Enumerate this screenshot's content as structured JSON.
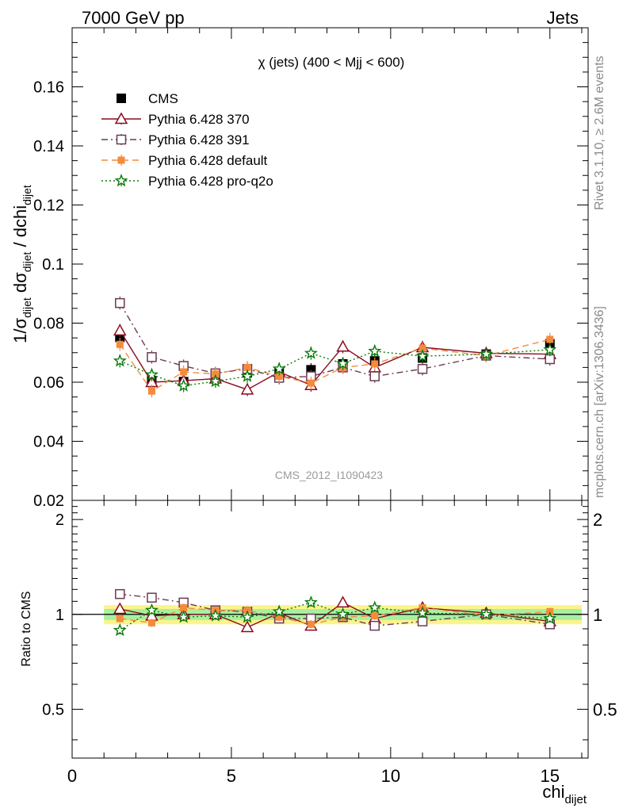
{
  "header": {
    "left": "7000 GeV pp",
    "right": "Jets"
  },
  "side_labels": {
    "rivet": "Rivet 3.1.10, ≥ 2.6M events",
    "mcplots": "mcplots.cern.ch [arXiv:1306.3436]"
  },
  "chart_data": [
    {
      "type": "line",
      "title": "χ (jets) (400 < Mjj <  600)",
      "ylabel": "1/σ_dijet dσ_dijet / dchi_dijet",
      "xlabel": "",
      "xlim": [
        0,
        16.2
      ],
      "ylim": [
        0.02,
        0.18
      ],
      "yticks": [
        0.02,
        0.04,
        0.06,
        0.08,
        0.1,
        0.12,
        0.14,
        0.16
      ],
      "ytick_labels": [
        "0.02",
        "0.04",
        "0.06",
        "0.08",
        "0.1",
        "0.12",
        "0.14",
        "0.16"
      ],
      "watermark": "CMS_2012_I1090423",
      "legend_position": "top-left",
      "x": [
        1.5,
        2.5,
        3.5,
        4.5,
        5.5,
        6.5,
        7.5,
        8.5,
        9.5,
        11,
        13,
        15
      ],
      "series": [
        {
          "name": "CMS",
          "color": "#000000",
          "marker": "filled-square",
          "line": "none",
          "values": [
            0.0752,
            0.0605,
            0.0602,
            0.0612,
            0.0632,
            0.0632,
            0.0642,
            0.0662,
            0.0672,
            0.0682,
            0.0695,
            0.073
          ]
        },
        {
          "name": "Pythia 6.428 370",
          "color": "#8b0a1e",
          "marker": "open-triangle",
          "line": "solid",
          "values": [
            0.0775,
            0.06,
            0.0605,
            0.0612,
            0.0575,
            0.0635,
            0.059,
            0.072,
            0.065,
            0.0718,
            0.0698,
            0.0695
          ]
        },
        {
          "name": "Pythia 6.428 391",
          "color": "#6b3a52",
          "marker": "open-square",
          "line": "dash-dot",
          "values": [
            0.0868,
            0.0685,
            0.0655,
            0.063,
            0.0645,
            0.0615,
            0.062,
            0.065,
            0.062,
            0.0645,
            0.069,
            0.0678
          ]
        },
        {
          "name": "Pythia 6.428 default",
          "color": "#f58a3c",
          "marker": "filled-square-small",
          "line": "dashed",
          "values": [
            0.0728,
            0.057,
            0.0635,
            0.0628,
            0.065,
            0.062,
            0.0597,
            0.065,
            0.0662,
            0.0715,
            0.069,
            0.0745
          ]
        },
        {
          "name": "Pythia 6.428 pro-q2o",
          "color": "#0a7a0a",
          "marker": "open-star",
          "line": "dotted",
          "values": [
            0.0672,
            0.0625,
            0.0588,
            0.0603,
            0.062,
            0.0645,
            0.0698,
            0.0663,
            0.0705,
            0.0688,
            0.0695,
            0.071
          ]
        }
      ]
    },
    {
      "type": "line",
      "title": "",
      "ylabel": "Ratio to CMS",
      "xlabel": "chi_dijet",
      "xlim": [
        0,
        16.2
      ],
      "ylim": [
        0.35,
        2.3
      ],
      "yticks": [
        0.5,
        1,
        2
      ],
      "ytick_labels": [
        "0.5",
        "1",
        "2"
      ],
      "xticks": [
        0,
        5,
        10,
        15
      ],
      "xtick_labels": [
        "0",
        "5",
        "10",
        "15"
      ],
      "band": {
        "x_range": [
          1.0,
          16.0
        ],
        "yellow": [
          0.93,
          1.07
        ],
        "green": [
          0.96,
          1.04
        ]
      },
      "x": [
        1.5,
        2.5,
        3.5,
        4.5,
        5.5,
        6.5,
        7.5,
        8.5,
        9.5,
        11,
        13,
        15
      ],
      "series": [
        {
          "name": "Pythia 6.428 370",
          "values": [
            1.04,
            0.99,
            1.0,
            1.0,
            0.91,
            1.01,
            0.92,
            1.09,
            0.97,
            1.05,
            1.01,
            0.95
          ]
        },
        {
          "name": "Pythia 6.428 391",
          "values": [
            1.16,
            1.13,
            1.09,
            1.03,
            1.02,
            0.97,
            0.97,
            0.98,
            0.92,
            0.95,
            1.0,
            0.93
          ]
        },
        {
          "name": "Pythia 6.428 default",
          "values": [
            0.97,
            0.94,
            1.05,
            1.03,
            1.03,
            0.98,
            0.93,
            0.98,
            0.99,
            1.05,
            0.99,
            1.02
          ]
        },
        {
          "name": "Pythia 6.428 pro-q2o",
          "values": [
            0.89,
            1.03,
            0.98,
            0.99,
            0.98,
            1.02,
            1.09,
            1.0,
            1.05,
            1.01,
            1.0,
            0.97
          ]
        }
      ]
    }
  ]
}
